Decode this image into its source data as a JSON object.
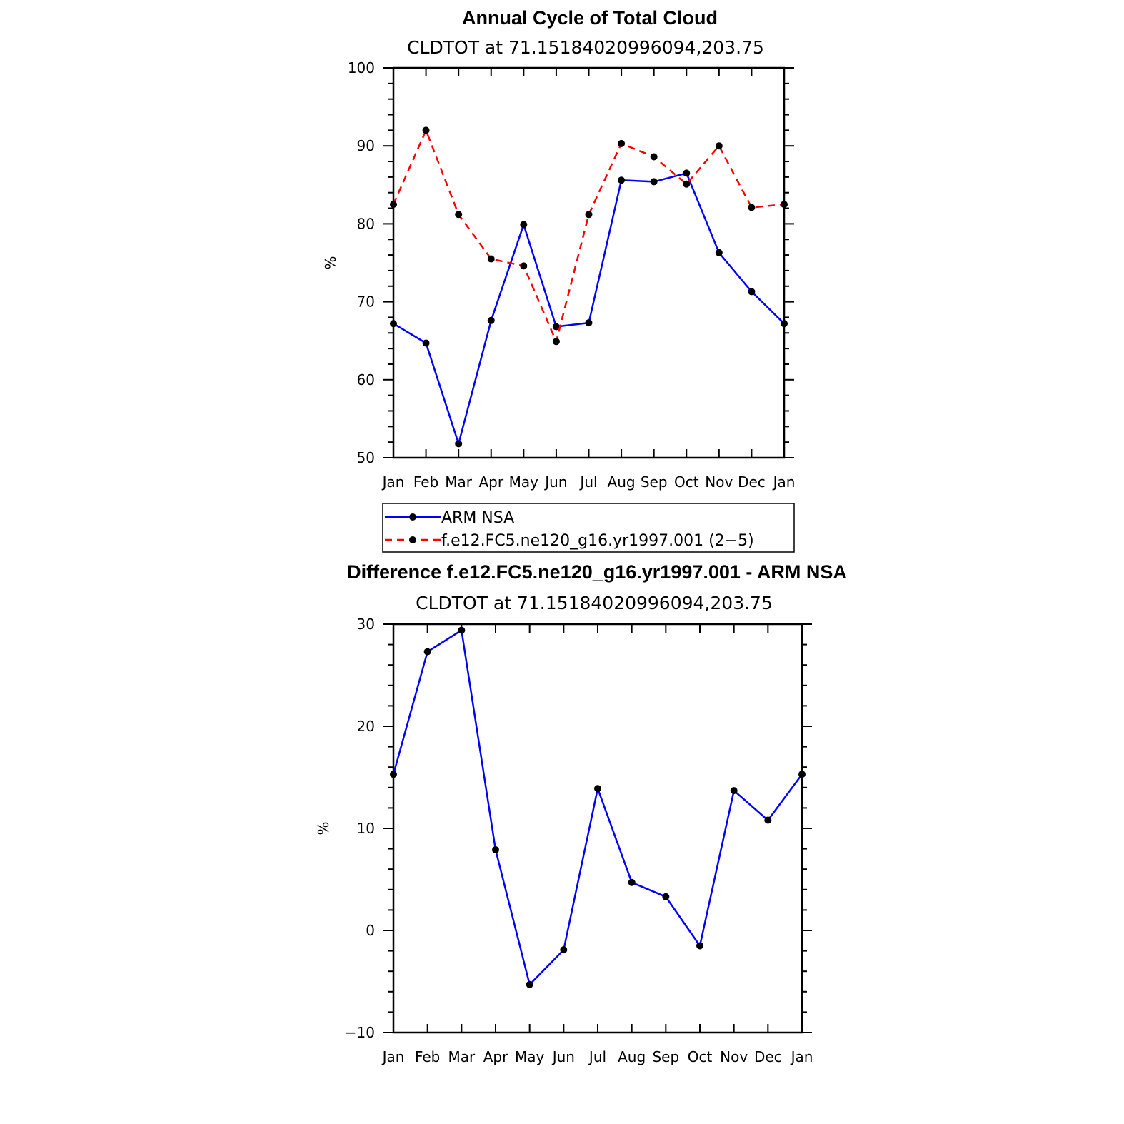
{
  "chart_data": [
    {
      "type": "line",
      "title": "Annual Cycle of Total Cloud",
      "subtitle": "CLDTOT at 71.15184020996094,203.75",
      "ylabel": "%",
      "ylim": [
        50,
        100
      ],
      "yticks": [
        50,
        60,
        70,
        80,
        90,
        100
      ],
      "categories": [
        "Jan",
        "Feb",
        "Mar",
        "Apr",
        "May",
        "Jun",
        "Jul",
        "Aug",
        "Sep",
        "Oct",
        "Nov",
        "Dec",
        "Jan"
      ],
      "series": [
        {
          "name": "ARM NSA",
          "color": "#0000ff",
          "dash": "solid",
          "values": [
            67.2,
            64.7,
            51.8,
            67.6,
            79.9,
            66.8,
            67.3,
            85.6,
            85.4,
            86.5,
            76.3,
            71.3,
            67.2
          ]
        },
        {
          "name": "f.e12.FC5.ne120_g16.yr1997.001 (2−5)",
          "color": "#ff0000",
          "dash": "dashed",
          "values": [
            82.5,
            92.0,
            81.2,
            75.5,
            74.6,
            64.9,
            81.2,
            90.3,
            88.6,
            85.1,
            90.0,
            82.1,
            82.5
          ]
        }
      ],
      "legend_position": "below"
    },
    {
      "type": "line",
      "title": "Difference f.e12.FC5.ne120_g16.yr1997.001 - ARM NSA",
      "subtitle": "CLDTOT at 71.15184020996094,203.75",
      "ylabel": "%",
      "ylim": [
        -10,
        30
      ],
      "yticks": [
        -10,
        0,
        10,
        20,
        30
      ],
      "ytick_labels": [
        "−10",
        "0",
        "10",
        "20",
        "30"
      ],
      "categories": [
        "Jan",
        "Feb",
        "Mar",
        "Apr",
        "May",
        "Jun",
        "Jul",
        "Aug",
        "Sep",
        "Oct",
        "Nov",
        "Dec",
        "Jan"
      ],
      "series": [
        {
          "color": "#0000ff",
          "dash": "solid",
          "values": [
            15.3,
            27.3,
            29.4,
            7.9,
            -5.3,
            -1.9,
            13.9,
            4.7,
            3.3,
            -1.5,
            13.7,
            10.8,
            15.3
          ]
        }
      ]
    }
  ]
}
